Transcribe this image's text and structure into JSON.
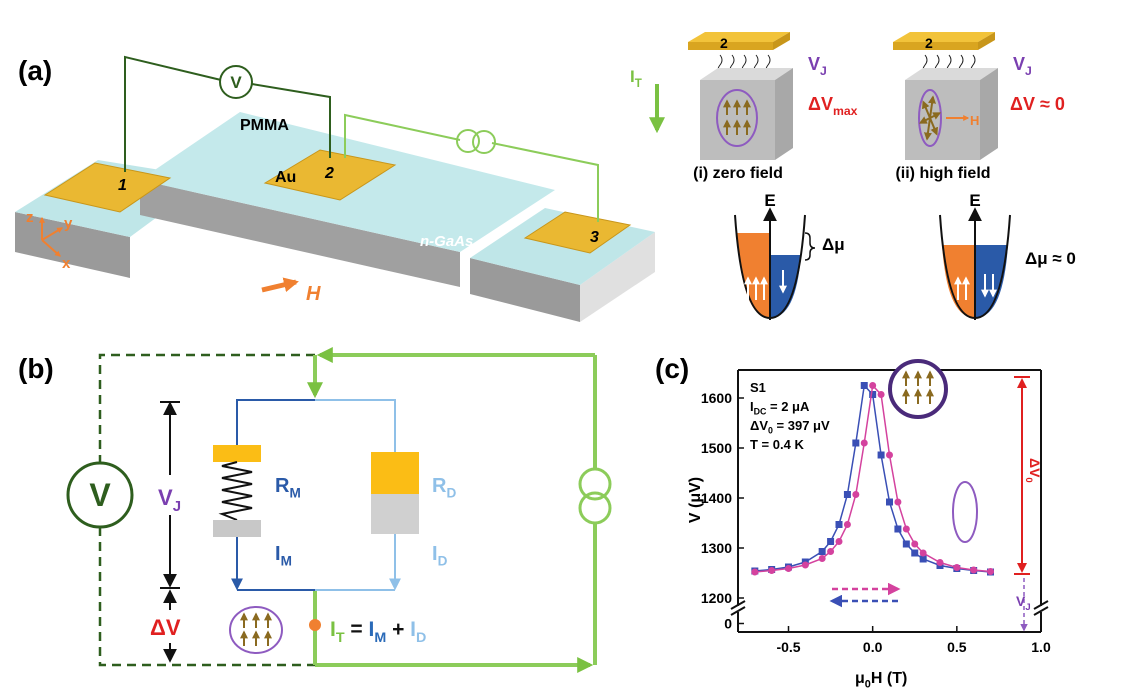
{
  "panel_a": {
    "label": "(a)",
    "device": {
      "contacts": [
        "1",
        "2",
        "3"
      ],
      "voltmeter": "V",
      "layer": "PMMA",
      "metal": "Au",
      "substrate": "n-GaAs",
      "axes": [
        "z",
        "y",
        "x"
      ],
      "field": "H"
    },
    "current": {
      "base": "I",
      "sub": "T"
    },
    "insets": [
      {
        "contact": "2",
        "voltage": {
          "base": "V",
          "sub": "J"
        },
        "signal": {
          "base": "ΔV",
          "sub": "max"
        },
        "caption": "(i) zero field",
        "energy_axis": "E",
        "splitting": "Δμ"
      },
      {
        "contact": "2",
        "voltage": {
          "base": "V",
          "sub": "J"
        },
        "signal": "ΔV ≈ 0",
        "field": "H",
        "caption": "(ii) high field",
        "energy_axis": "E",
        "splitting": "Δμ ≈ 0"
      }
    ]
  },
  "panel_b": {
    "label": "(b)",
    "voltmeter": "V",
    "junction_voltage": {
      "base": "V",
      "sub": "J"
    },
    "delta_v": "ΔV",
    "r_m": {
      "base": "R",
      "sub": "M"
    },
    "r_d": {
      "base": "R",
      "sub": "D"
    },
    "i_m": {
      "base": "I",
      "sub": "M"
    },
    "i_d": {
      "base": "I",
      "sub": "D"
    },
    "sum": [
      {
        "base": "I",
        "sub": "T"
      },
      " = ",
      {
        "base": "I",
        "sub": "M"
      },
      " + ",
      {
        "base": "I",
        "sub": "D"
      }
    ]
  },
  "chart_data": {
    "type": "line",
    "panel_label": "(c)",
    "markers": true,
    "x_label": {
      "base": "μ",
      "sub": "0",
      "after": "H (T)"
    },
    "y_label": "V (μV)",
    "annotations": [
      "S1",
      {
        "base": "I",
        "sub": "DC",
        "after": " = 2 μA"
      },
      {
        "base": "ΔV",
        "sub": "0",
        "after": " = 397 μV"
      },
      "T = 0.4 K"
    ],
    "delta_label": {
      "base": "ΔV",
      "sub": "0"
    },
    "vj_label": {
      "base": "V",
      "sub": "J"
    },
    "xlim": [
      -0.8,
      1.0
    ],
    "xticks": [
      -0.5,
      {
        "value": 0,
        "label": "0.0"
      },
      0.5,
      {
        "value": 1,
        "label": "1.0"
      }
    ],
    "ylim": [
      1190,
      1656
    ],
    "yticks": [
      1200,
      1300,
      1400,
      1500,
      1600
    ],
    "ylim_lower": [
      -8,
      8
    ],
    "yticks_lower": [
      0
    ],
    "series": [
      {
        "color": "#3a4fb5",
        "marker": "square",
        "x": [
          -0.7,
          -0.6,
          -0.5,
          -0.4,
          -0.3,
          -0.25,
          -0.2,
          -0.15,
          -0.1,
          -0.05,
          0,
          0.05,
          0.1,
          0.15,
          0.2,
          0.25,
          0.3,
          0.4,
          0.5,
          0.6,
          0.7
        ],
        "values": [
          1254,
          1257,
          1262,
          1272,
          1293,
          1313,
          1347,
          1407,
          1510,
          1625,
          1607,
          1486,
          1392,
          1338,
          1308,
          1290,
          1278,
          1265,
          1259,
          1255,
          1252
        ]
      },
      {
        "color": "#d4429e",
        "marker": "circle",
        "x": [
          -0.7,
          -0.6,
          -0.5,
          -0.4,
          -0.3,
          -0.25,
          -0.2,
          -0.15,
          -0.1,
          -0.05,
          0,
          0.05,
          0.1,
          0.15,
          0.2,
          0.25,
          0.3,
          0.4,
          0.5,
          0.6,
          0.7
        ],
        "values": [
          1252,
          1255,
          1259,
          1266,
          1279,
          1293,
          1313,
          1347,
          1407,
          1510,
          1625,
          1607,
          1486,
          1392,
          1338,
          1308,
          1290,
          1271,
          1261,
          1256,
          1253
        ]
      }
    ]
  }
}
